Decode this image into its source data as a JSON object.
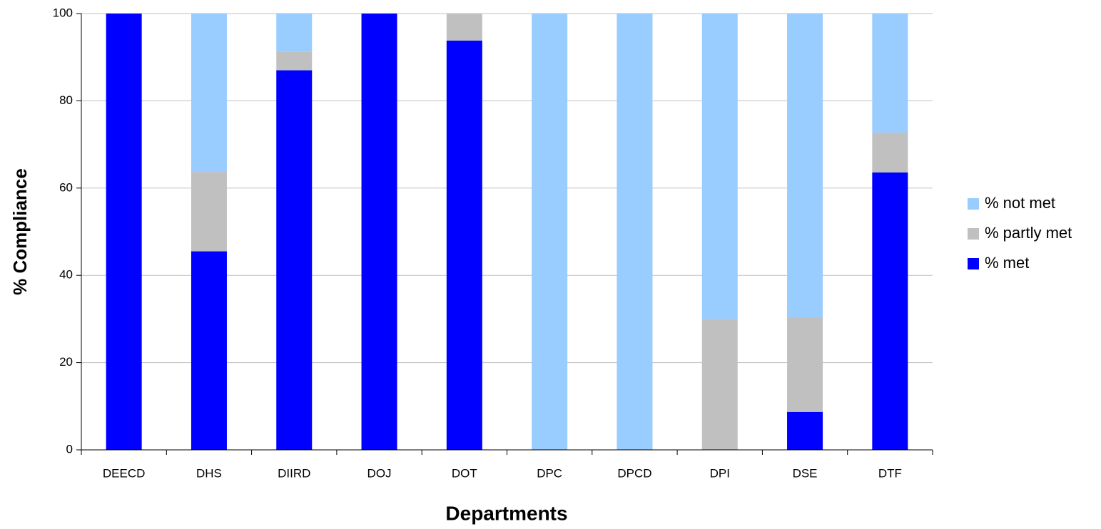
{
  "chart_data": {
    "type": "stacked_bar",
    "x_label": "Departments",
    "y_label": "% Compliance",
    "categories": [
      "DEECD",
      "DHS",
      "DIIRD",
      "DOJ",
      "DOT",
      "DPC",
      "DPCD",
      "DPI",
      "DSE",
      "DTF"
    ],
    "series": [
      {
        "name": "% met",
        "color": "#0000ff",
        "values": [
          100,
          45.5,
          87,
          100,
          93.8,
          0,
          0,
          0,
          8.7,
          63.6
        ]
      },
      {
        "name": "% partly met",
        "color": "#c0c0c0",
        "values": [
          0,
          18.2,
          4.3,
          0,
          6.2,
          0,
          0,
          30,
          21.7,
          9.1
        ]
      },
      {
        "name": "% not met",
        "color": "#99ccff",
        "values": [
          0,
          36.3,
          8.7,
          0,
          0,
          100,
          100,
          70,
          69.6,
          27.3
        ]
      }
    ],
    "ylim": [
      0,
      100
    ],
    "yticks": [
      0,
      20,
      40,
      60,
      80,
      100
    ],
    "grid": true,
    "legend": "right"
  }
}
